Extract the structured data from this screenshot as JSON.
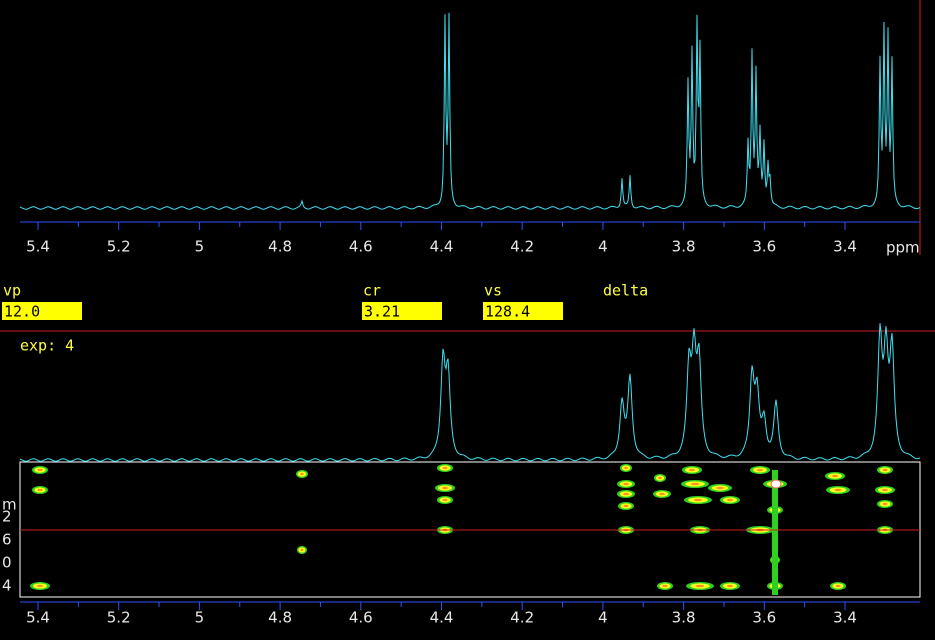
{
  "top_axis": {
    "ticks": [
      5.4,
      5.2,
      5.0,
      4.8,
      4.6,
      4.4,
      4.2,
      4.0,
      3.8,
      3.6,
      3.4
    ],
    "unit": "ppm"
  },
  "parameters": [
    {
      "label": "vp",
      "value": "12.0"
    },
    {
      "label": "cr",
      "value": "3.21"
    },
    {
      "label": "vs",
      "value": "128.4"
    }
  ],
  "mode": "delta",
  "experiment": "exp: 4",
  "side_labels": [
    "m",
    "2",
    "6",
    "0",
    "4"
  ],
  "bottom_axis": {
    "ticks": [
      5.4,
      5.2,
      5.0,
      4.8,
      4.6,
      4.4,
      4.2,
      4.0,
      3.8,
      3.6,
      3.4
    ]
  }
}
